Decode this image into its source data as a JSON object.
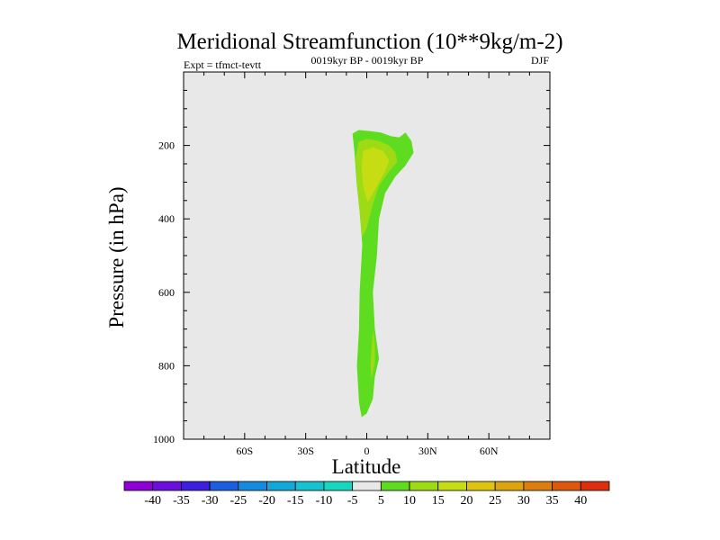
{
  "chart_data": {
    "type": "heatmap",
    "title": "Meridional Streamfunction (10**9kg/m-2)",
    "left_label": "Expt = tfmct-tevtt",
    "center_label": "0019kyr BP - 0019kyr BP",
    "right_label": "DJF",
    "xlabel": "Latitude",
    "ylabel": "Pressure (in hPa)",
    "xlim": [
      -90,
      90
    ],
    "ylim": [
      1000,
      0
    ],
    "x_ticks": [
      {
        "value": -60,
        "label": "60S"
      },
      {
        "value": -30,
        "label": "30S"
      },
      {
        "value": 0,
        "label": "0"
      },
      {
        "value": 30,
        "label": "30N"
      },
      {
        "value": 60,
        "label": "60N"
      }
    ],
    "y_ticks": [
      {
        "value": 200,
        "label": "200"
      },
      {
        "value": 400,
        "label": "400"
      },
      {
        "value": 600,
        "label": "600"
      },
      {
        "value": 800,
        "label": "800"
      },
      {
        "value": 1000,
        "label": "1000"
      }
    ],
    "background_color": "#e8e8e8",
    "contour_levels": [
      -40,
      -35,
      -30,
      -25,
      -20,
      -15,
      -10,
      -5,
      5,
      10,
      15,
      20,
      25,
      30,
      35,
      40
    ],
    "level_labels": [
      "-40",
      "-35",
      "-30",
      "-25",
      "-20",
      "-15",
      "-10",
      "-5",
      "5",
      "10",
      "15",
      "20",
      "25",
      "30",
      "35",
      "40"
    ],
    "colors": [
      "#8f00d7",
      "#6a0fde",
      "#3d1fe0",
      "#1a5fe0",
      "#128be0",
      "#12a8d8",
      "#14c3cf",
      "#16d8bf",
      "#e8e8e8",
      "#5edc1f",
      "#9ddc14",
      "#c6dd14",
      "#ddc410",
      "#dda50d",
      "#dd7d0d",
      "#dd580d",
      "#dd2f0d"
    ],
    "regions": [
      {
        "level": "5 to 10",
        "color": "#5edc1f",
        "polygon": [
          [
            -2.5,
            940
          ],
          [
            0,
            930
          ],
          [
            3,
            890
          ],
          [
            4,
            830
          ],
          [
            6,
            780
          ],
          [
            4,
            700
          ],
          [
            3,
            600
          ],
          [
            5,
            500
          ],
          [
            6,
            400
          ],
          [
            9,
            330
          ],
          [
            14,
            285
          ],
          [
            19,
            255
          ],
          [
            23,
            220
          ],
          [
            22,
            188
          ],
          [
            19,
            165
          ],
          [
            16,
            178
          ],
          [
            12,
            175
          ],
          [
            7,
            165
          ],
          [
            0,
            160
          ],
          [
            -4,
            158
          ],
          [
            -7,
            168
          ],
          [
            -6,
            220
          ],
          [
            -5,
            300
          ],
          [
            -3.5,
            380
          ],
          [
            -2.2,
            470
          ],
          [
            -3.5,
            600
          ],
          [
            -3.8,
            700
          ],
          [
            -4.8,
            800
          ],
          [
            -3.8,
            900
          ]
        ]
      },
      {
        "level": "10 to 15",
        "color": "#9ddc14",
        "polygon": [
          [
            -2.3,
            450
          ],
          [
            0,
            425
          ],
          [
            3,
            360
          ],
          [
            6,
            310
          ],
          [
            11,
            270
          ],
          [
            15,
            245
          ],
          [
            14,
            218
          ],
          [
            11,
            200
          ],
          [
            6,
            188
          ],
          [
            0,
            182
          ],
          [
            -4,
            190
          ],
          [
            -5.5,
            235
          ],
          [
            -4.8,
            300
          ],
          [
            -3.5,
            380
          ]
        ]
      },
      {
        "level": "10 to 15",
        "color": "#9ddc14",
        "polygon": [
          [
            2.3,
            835
          ],
          [
            4,
            795
          ],
          [
            4,
            740
          ],
          [
            3.2,
            700
          ],
          [
            2.5,
            740
          ],
          [
            1.8,
            800
          ]
        ]
      },
      {
        "level": "15 to 20",
        "color": "#c6dd14",
        "polygon": [
          [
            0.5,
            355
          ],
          [
            4,
            320
          ],
          [
            9,
            270
          ],
          [
            11,
            240
          ],
          [
            8,
            215
          ],
          [
            3,
            205
          ],
          [
            -1.8,
            215
          ],
          [
            -2.5,
            260
          ],
          [
            -1.8,
            310
          ]
        ]
      }
    ]
  }
}
